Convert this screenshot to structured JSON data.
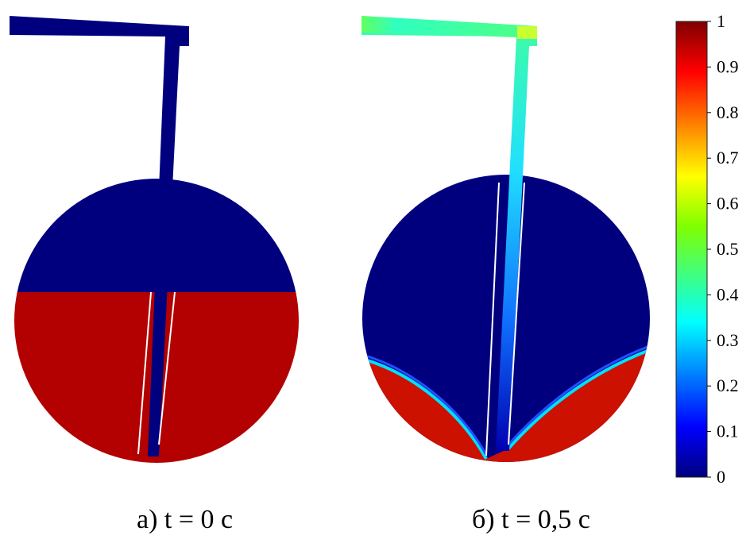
{
  "panels": [
    {
      "caption": "а) t = 0 с"
    },
    {
      "caption": "б) t = 0,5 с"
    }
  ],
  "colorbar": {
    "min": 0,
    "max": 1,
    "ticks": [
      "0",
      "0.1",
      "0.2",
      "0.3",
      "0.4",
      "0.5",
      "0.6",
      "0.7",
      "0.8",
      "0.9",
      "1"
    ],
    "colors": [
      "#00007f",
      "#0000ff",
      "#00ffff",
      "#7fff00",
      "#ffff00",
      "#ff0000",
      "#7f0000"
    ]
  },
  "colors": {
    "low": "#00007f",
    "high": "#b30000",
    "high_alt": "#cc1100"
  }
}
